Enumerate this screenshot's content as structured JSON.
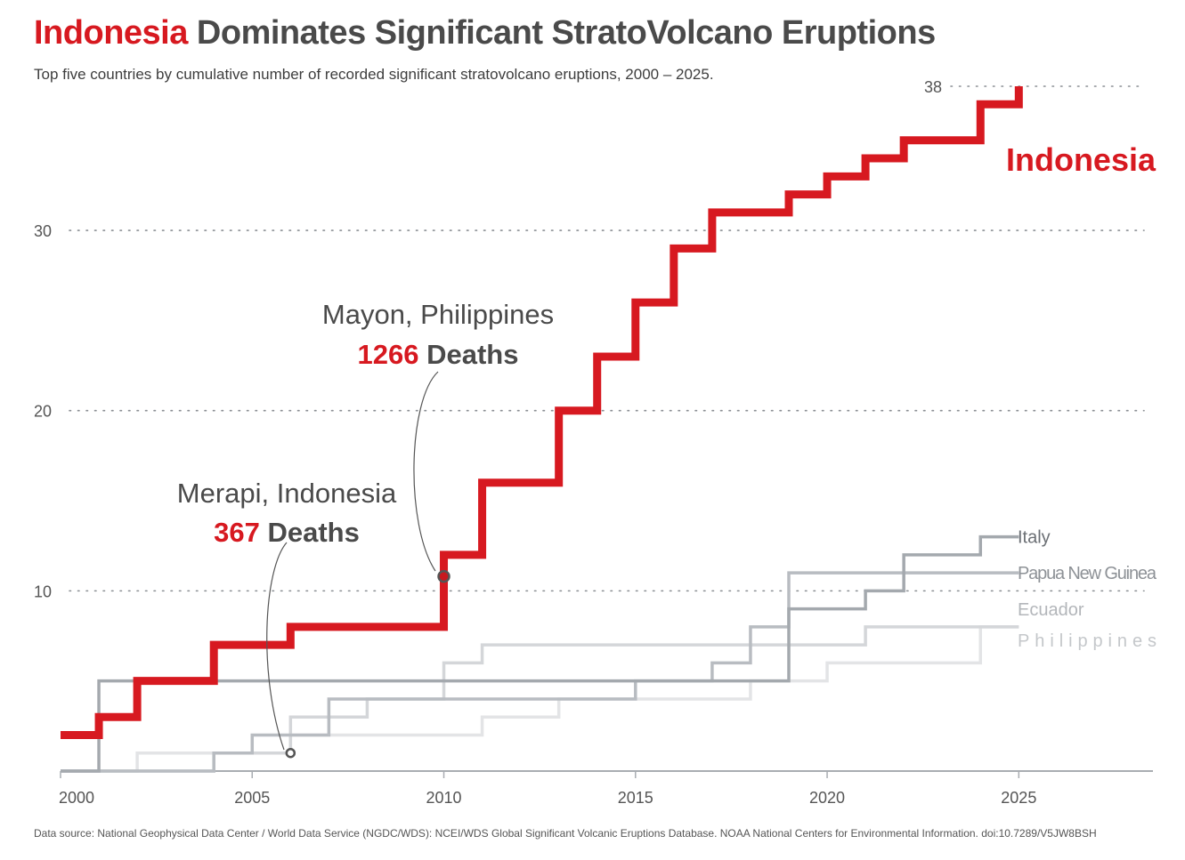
{
  "header": {
    "title_highlight": "Indonesia",
    "title_rest": " Dominates Significant StratoVolcano Eruptions",
    "subtitle": "Top five countries by cumulative number of recorded significant stratovolcano eruptions, 2000 – 2025."
  },
  "footer": {
    "source": "Data source: National Geophysical Data Center / World Data Service (NGDC/WDS): NCEI/WDS Global Significant Volcanic Eruptions Database. NOAA National Centers for Environmental Information. doi:10.7289/V5JW8BSH"
  },
  "chart_data": {
    "type": "line",
    "step": true,
    "xlim": [
      2000,
      2028.5
    ],
    "ylim": [
      0,
      38
    ],
    "x_ticks": [
      2000,
      2005,
      2010,
      2015,
      2020,
      2025
    ],
    "y_ticks": [
      10,
      20,
      30
    ],
    "top_value_label": "38",
    "grid": "dotted horizontal",
    "series": [
      {
        "name": "Philippines",
        "color": "#e3e4e6",
        "width": 3.5,
        "points": [
          [
            2000,
            0
          ],
          [
            2002,
            1
          ],
          [
            2006,
            2
          ],
          [
            2011,
            3
          ],
          [
            2013,
            4
          ],
          [
            2018,
            5
          ],
          [
            2020,
            6
          ],
          [
            2024,
            8
          ],
          [
            2025,
            8
          ]
        ]
      },
      {
        "name": "Ecuador",
        "color": "#d4d6d9",
        "width": 3.5,
        "points": [
          [
            2000,
            0
          ],
          [
            2004,
            1
          ],
          [
            2006,
            3
          ],
          [
            2008,
            4
          ],
          [
            2010,
            6
          ],
          [
            2011,
            7
          ],
          [
            2018,
            7
          ],
          [
            2019,
            7
          ],
          [
            2021,
            8
          ],
          [
            2025,
            8
          ]
        ]
      },
      {
        "name": "Papua New Guinea",
        "color": "#b8bcc1",
        "width": 3.5,
        "points": [
          [
            2000,
            0
          ],
          [
            2004,
            1
          ],
          [
            2005,
            2
          ],
          [
            2007,
            4
          ],
          [
            2015,
            5
          ],
          [
            2017,
            6
          ],
          [
            2018,
            8
          ],
          [
            2019,
            11
          ],
          [
            2025,
            11
          ]
        ]
      },
      {
        "name": "Italy",
        "color": "#a4a9ae",
        "width": 3.5,
        "points": [
          [
            2000,
            0
          ],
          [
            2001,
            5
          ],
          [
            2004,
            5
          ],
          [
            2018,
            5
          ],
          [
            2019,
            9
          ],
          [
            2021,
            10
          ],
          [
            2022,
            12
          ],
          [
            2024,
            13
          ],
          [
            2025,
            13
          ]
        ]
      },
      {
        "name": "Indonesia",
        "color": "#d71920",
        "width": 9,
        "points": [
          [
            2000,
            2
          ],
          [
            2001,
            3
          ],
          [
            2002,
            5
          ],
          [
            2004,
            7
          ],
          [
            2006,
            8
          ],
          [
            2010,
            12
          ],
          [
            2011,
            16
          ],
          [
            2013,
            20
          ],
          [
            2014,
            23
          ],
          [
            2015,
            26
          ],
          [
            2016,
            29
          ],
          [
            2017,
            31
          ],
          [
            2019,
            32
          ],
          [
            2020,
            33
          ],
          [
            2021,
            34
          ],
          [
            2022,
            35
          ],
          [
            2024,
            37
          ],
          [
            2025,
            38
          ]
        ]
      }
    ],
    "annotations": [
      {
        "id": "merapi",
        "line1": "Merapi, Indonesia",
        "deaths_number": "367",
        "deaths_word": " Deaths",
        "point": [
          2006,
          1
        ]
      },
      {
        "id": "mayon",
        "line1": "Mayon, Philippines",
        "deaths_number": "1266",
        "deaths_word": " Deaths",
        "point": [
          2010,
          10.8
        ]
      }
    ],
    "colors": {
      "accent": "#d71920",
      "text_dark": "#4a4a4a",
      "axis": "#a9adb2"
    }
  }
}
